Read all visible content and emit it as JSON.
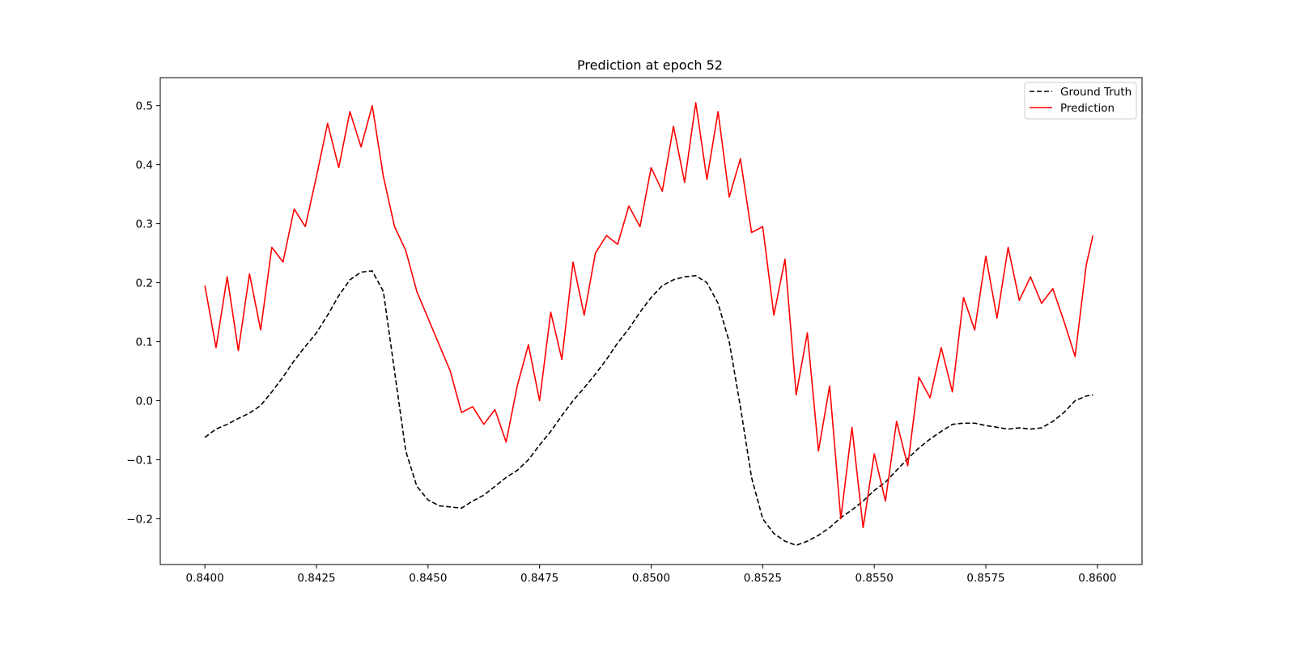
{
  "chart_data": {
    "type": "line",
    "title": "Prediction at epoch 52",
    "xlabel": "",
    "ylabel": "",
    "xlim": [
      0.839,
      0.861
    ],
    "ylim": [
      -0.2775,
      0.5475
    ],
    "xticks": [
      0.84,
      0.8425,
      0.845,
      0.8475,
      0.85,
      0.8525,
      0.855,
      0.8575,
      0.86
    ],
    "xtick_labels": [
      "0.8400",
      "0.8425",
      "0.8450",
      "0.8475",
      "0.8500",
      "0.8525",
      "0.8550",
      "0.8575",
      "0.8600"
    ],
    "yticks": [
      -0.2,
      -0.1,
      0.0,
      0.1,
      0.2,
      0.3,
      0.4,
      0.5
    ],
    "ytick_labels": [
      "−0.2",
      "−0.1",
      "0.0",
      "0.1",
      "0.2",
      "0.3",
      "0.4",
      "0.5"
    ],
    "grid": false,
    "legend_position": "top-right",
    "series": [
      {
        "name": "Ground Truth",
        "color": "#000000",
        "style": "dashed",
        "x": [
          0.84,
          0.84025,
          0.8405,
          0.84075,
          0.841,
          0.84125,
          0.8415,
          0.84175,
          0.842,
          0.84225,
          0.8425,
          0.84275,
          0.843,
          0.84325,
          0.8435,
          0.84375,
          0.844,
          0.84425,
          0.8445,
          0.84475,
          0.845,
          0.84525,
          0.8455,
          0.84575,
          0.846,
          0.84625,
          0.8465,
          0.84675,
          0.847,
          0.84725,
          0.8475,
          0.84775,
          0.848,
          0.84825,
          0.8485,
          0.84875,
          0.849,
          0.84925,
          0.8495,
          0.84975,
          0.85,
          0.85025,
          0.8505,
          0.85075,
          0.851,
          0.85125,
          0.8515,
          0.85175,
          0.852,
          0.85225,
          0.8525,
          0.85275,
          0.853,
          0.85325,
          0.8535,
          0.85375,
          0.854,
          0.85425,
          0.8545,
          0.85475,
          0.855,
          0.85525,
          0.8555,
          0.85575,
          0.856,
          0.85625,
          0.8565,
          0.85675,
          0.857,
          0.85725,
          0.8575,
          0.85775,
          0.858,
          0.85825,
          0.8585,
          0.85875,
          0.859,
          0.85925,
          0.8595,
          0.85975,
          0.8599
        ],
        "values": [
          -0.062,
          -0.048,
          -0.04,
          -0.03,
          -0.021,
          -0.008,
          0.015,
          0.04,
          0.068,
          0.092,
          0.115,
          0.145,
          0.178,
          0.205,
          0.218,
          0.22,
          0.185,
          0.05,
          -0.085,
          -0.145,
          -0.168,
          -0.178,
          -0.18,
          -0.182,
          -0.17,
          -0.16,
          -0.145,
          -0.13,
          -0.118,
          -0.1,
          -0.075,
          -0.052,
          -0.025,
          0.0,
          0.022,
          0.045,
          0.07,
          0.098,
          0.122,
          0.15,
          0.175,
          0.195,
          0.205,
          0.21,
          0.212,
          0.2,
          0.165,
          0.1,
          -0.01,
          -0.13,
          -0.2,
          -0.225,
          -0.238,
          -0.245,
          -0.238,
          -0.228,
          -0.215,
          -0.198,
          -0.185,
          -0.17,
          -0.152,
          -0.138,
          -0.118,
          -0.098,
          -0.08,
          -0.065,
          -0.052,
          -0.04,
          -0.038,
          -0.038,
          -0.042,
          -0.045,
          -0.048,
          -0.046,
          -0.048,
          -0.046,
          -0.035,
          -0.02,
          0.0,
          0.008,
          0.01
        ]
      },
      {
        "name": "Prediction",
        "color": "#ff0000",
        "style": "solid",
        "x": [
          0.84,
          0.84025,
          0.8405,
          0.84075,
          0.841,
          0.84125,
          0.8415,
          0.84175,
          0.842,
          0.84225,
          0.8425,
          0.84275,
          0.843,
          0.84325,
          0.8435,
          0.84375,
          0.844,
          0.84425,
          0.8445,
          0.84475,
          0.845,
          0.84525,
          0.8455,
          0.84575,
          0.846,
          0.84625,
          0.8465,
          0.84675,
          0.847,
          0.84725,
          0.8475,
          0.84775,
          0.848,
          0.84825,
          0.8485,
          0.84875,
          0.849,
          0.84925,
          0.8495,
          0.84975,
          0.85,
          0.85025,
          0.8505,
          0.85075,
          0.851,
          0.85125,
          0.8515,
          0.85175,
          0.852,
          0.85225,
          0.8525,
          0.85275,
          0.853,
          0.85325,
          0.8535,
          0.85375,
          0.854,
          0.85425,
          0.8545,
          0.85475,
          0.855,
          0.85525,
          0.8555,
          0.85575,
          0.856,
          0.85625,
          0.8565,
          0.85675,
          0.857,
          0.85725,
          0.8575,
          0.85775,
          0.858,
          0.85825,
          0.8585,
          0.85875,
          0.859,
          0.85925,
          0.8595,
          0.85975,
          0.8599
        ],
        "values": [
          0.195,
          0.09,
          0.21,
          0.085,
          0.215,
          0.12,
          0.26,
          0.235,
          0.325,
          0.295,
          0.38,
          0.47,
          0.395,
          0.49,
          0.43,
          0.5,
          0.38,
          0.295,
          0.255,
          0.185,
          0.14,
          0.095,
          0.05,
          -0.02,
          -0.01,
          -0.04,
          -0.015,
          -0.07,
          0.025,
          0.095,
          0.0,
          0.15,
          0.07,
          0.235,
          0.145,
          0.25,
          0.28,
          0.265,
          0.33,
          0.295,
          0.395,
          0.355,
          0.465,
          0.37,
          0.505,
          0.375,
          0.49,
          0.345,
          0.41,
          0.285,
          0.295,
          0.145,
          0.24,
          0.01,
          0.115,
          -0.085,
          0.025,
          -0.2,
          -0.045,
          -0.215,
          -0.09,
          -0.17,
          -0.035,
          -0.11,
          0.04,
          0.005,
          0.09,
          0.015,
          0.175,
          0.12,
          0.245,
          0.14,
          0.26,
          0.17,
          0.21,
          0.165,
          0.19,
          0.135,
          0.075,
          0.23,
          0.28
        ]
      }
    ]
  }
}
